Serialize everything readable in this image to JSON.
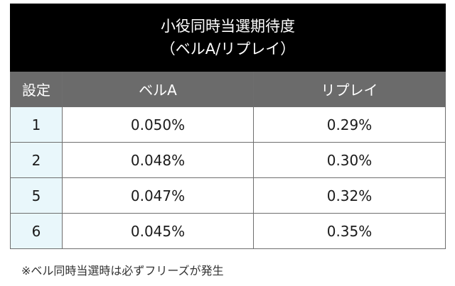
{
  "table": {
    "title_line1": "小役同時当選期待度",
    "title_line2": "（ベルA/リプレイ）",
    "headers": [
      "設定",
      "ベルA",
      "リプレイ"
    ],
    "rows": [
      {
        "setting": "1",
        "bell_a": "0.050%",
        "replay": "0.29%"
      },
      {
        "setting": "2",
        "bell_a": "0.048%",
        "replay": "0.30%"
      },
      {
        "setting": "5",
        "bell_a": "0.047%",
        "replay": "0.32%"
      },
      {
        "setting": "6",
        "bell_a": "0.045%",
        "replay": "0.35%"
      }
    ]
  },
  "note": "※ベル同時当選時は必ずフリーズが発生",
  "colors": {
    "title_bg": "#000000",
    "header_bg": "#6b6b6b",
    "setting_cell_bg": "#e9f7fb",
    "border": "#6e6e6e"
  }
}
